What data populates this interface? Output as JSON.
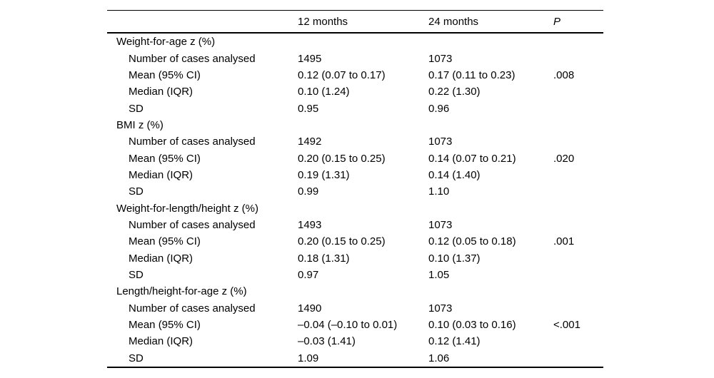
{
  "table": {
    "header": {
      "col1": "",
      "col2": "12 months",
      "col3": "24 months",
      "col4": "P"
    },
    "sections": [
      {
        "title": "Weight-for-age z (%)",
        "rows": [
          {
            "label": "Number of cases analysed",
            "m12": "1495",
            "m24": "1073",
            "p": ""
          },
          {
            "label": "Mean (95% CI)",
            "m12": "0.12 (0.07 to 0.17)",
            "m24": "0.17 (0.11 to 0.23)",
            "p": ".008"
          },
          {
            "label": "Median (IQR)",
            "m12": "0.10 (1.24)",
            "m24": "0.22 (1.30)",
            "p": ""
          },
          {
            "label": "SD",
            "m12": "0.95",
            "m24": "0.96",
            "p": ""
          }
        ]
      },
      {
        "title": "BMI z (%)",
        "rows": [
          {
            "label": "Number of cases analysed",
            "m12": "1492",
            "m24": "1073",
            "p": ""
          },
          {
            "label": "Mean (95% CI)",
            "m12": "0.20 (0.15 to 0.25)",
            "m24": "0.14 (0.07 to 0.21)",
            "p": ".020"
          },
          {
            "label": "Median (IQR)",
            "m12": "0.19 (1.31)",
            "m24": "0.14 (1.40)",
            "p": ""
          },
          {
            "label": "SD",
            "m12": "0.99",
            "m24": "1.10",
            "p": ""
          }
        ]
      },
      {
        "title": "Weight-for-length/height z (%)",
        "rows": [
          {
            "label": "Number of cases analysed",
            "m12": "1493",
            "m24": "1073",
            "p": ""
          },
          {
            "label": "Mean (95% CI)",
            "m12": "0.20 (0.15 to 0.25)",
            "m24": "0.12 (0.05 to 0.18)",
            "p": ".001"
          },
          {
            "label": "Median (IQR)",
            "m12": "0.18 (1.31)",
            "m24": "0.10 (1.37)",
            "p": ""
          },
          {
            "label": "SD",
            "m12": "0.97",
            "m24": "1.05",
            "p": ""
          }
        ]
      },
      {
        "title": "Length/height-for-age z (%)",
        "rows": [
          {
            "label": "Number of cases analysed",
            "m12": "1490",
            "m24": "1073",
            "p": ""
          },
          {
            "label": "Mean (95% CI)",
            "m12": "–0.04 (–0.10 to 0.01)",
            "m24": "0.10 (0.03 to 0.16)",
            "p": "<.001"
          },
          {
            "label": "Median (IQR)",
            "m12": "–0.03 (1.41)",
            "m24": "0.12 (1.41)",
            "p": ""
          },
          {
            "label": "SD",
            "m12": "1.09",
            "m24": "1.06",
            "p": ""
          }
        ]
      }
    ]
  }
}
